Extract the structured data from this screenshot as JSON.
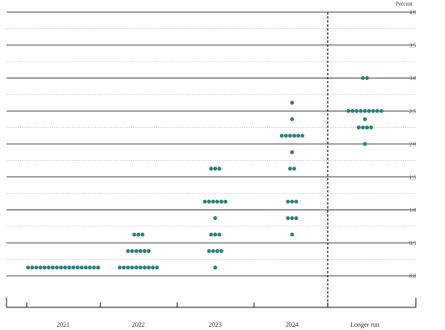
{
  "chart_data": {
    "type": "scatter",
    "ylabel": "Percent",
    "yticks": [
      "4.0",
      "3.5",
      "3.0",
      "2.5",
      "2.0",
      "1.5",
      "1.0",
      "0.5",
      "0.0"
    ],
    "ylim": [
      0.0,
      4.0
    ],
    "grid": true,
    "categories": [
      "2021",
      "2022",
      "2023",
      "2024",
      "Longer run"
    ],
    "dot_color": "#2b7f7a",
    "projections": [
      {
        "period": "2021",
        "levels": [
          {
            "rate": 0.125,
            "count": 18
          }
        ]
      },
      {
        "period": "2022",
        "levels": [
          {
            "rate": 0.125,
            "count": 10
          },
          {
            "rate": 0.375,
            "count": 6
          },
          {
            "rate": 0.625,
            "count": 3
          }
        ]
      },
      {
        "period": "2023",
        "levels": [
          {
            "rate": 0.125,
            "count": 1
          },
          {
            "rate": 0.375,
            "count": 4
          },
          {
            "rate": 0.625,
            "count": 3
          },
          {
            "rate": 0.875,
            "count": 1
          },
          {
            "rate": 1.125,
            "count": 6
          },
          {
            "rate": 1.625,
            "count": 3
          }
        ]
      },
      {
        "period": "2024",
        "levels": [
          {
            "rate": 0.625,
            "count": 1
          },
          {
            "rate": 0.875,
            "count": 3
          },
          {
            "rate": 1.125,
            "count": 3
          },
          {
            "rate": 1.625,
            "count": 2
          },
          {
            "rate": 1.875,
            "count": 1
          },
          {
            "rate": 2.125,
            "count": 6
          },
          {
            "rate": 2.375,
            "count": 1
          },
          {
            "rate": 2.625,
            "count": 1
          }
        ]
      },
      {
        "period": "Longer run",
        "levels": [
          {
            "rate": 2.0,
            "count": 1
          },
          {
            "rate": 2.25,
            "count": 4
          },
          {
            "rate": 2.375,
            "count": 1
          },
          {
            "rate": 2.5,
            "count": 9
          },
          {
            "rate": 3.0,
            "count": 2
          }
        ]
      }
    ]
  }
}
